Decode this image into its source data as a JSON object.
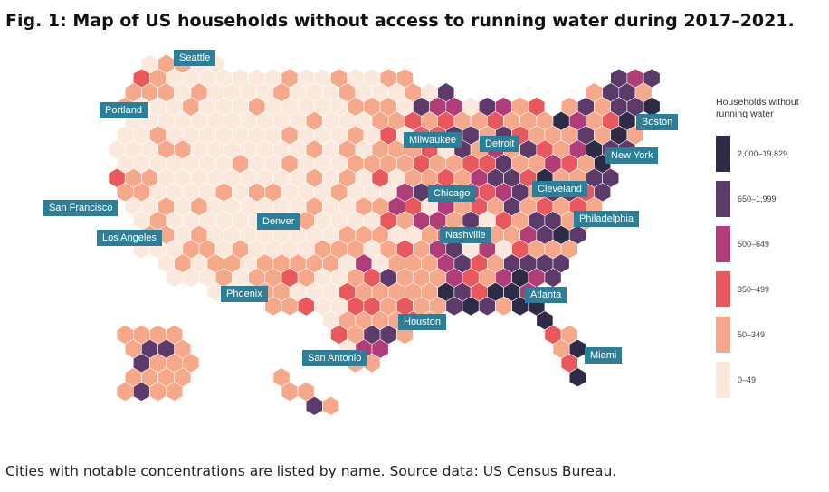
{
  "title": "Fig. 1: Map of US households without access to running water during 2017–2021.",
  "caption": "Cities with notable concentrations are listed by name. Source data: US Census Bureau.",
  "legend": {
    "title": "Households without running water",
    "items": [
      {
        "label": "2,000–19,829",
        "color": "#2d2b45"
      },
      {
        "label": "650–1,999",
        "color": "#5c3a6a"
      },
      {
        "label": "500–649",
        "color": "#b03c78"
      },
      {
        "label": "350–499",
        "color": "#e8585c"
      },
      {
        "label": "50–349",
        "color": "#f5a98a"
      },
      {
        "label": "0–49",
        "color": "#fbe9de"
      }
    ]
  },
  "cities": [
    "Seattle",
    "Portland",
    "San Francisco",
    "Los Angeles",
    "Denver",
    "Phoenix",
    "San Antonio",
    "Houston",
    "Milwaukee",
    "Detroit",
    "Chicago",
    "Nashville",
    "Cleveland",
    "Philadelphia",
    "New York",
    "Boston",
    "Atlanta",
    "Miami"
  ],
  "label_color": "#2c7f96"
}
